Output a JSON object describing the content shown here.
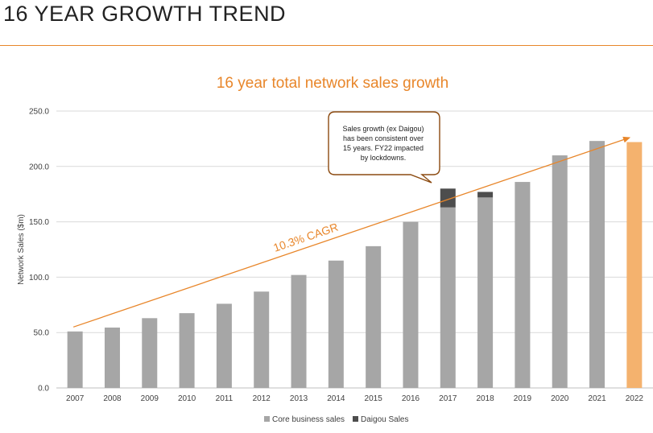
{
  "slide": {
    "title": "16 YEAR GROWTH TREND"
  },
  "colors": {
    "accent": "#E8862A",
    "core": "#A6A6A6",
    "daigou": "#4D4D4D",
    "forecast": "#F4B26E",
    "callout_border": "#8B4A10"
  },
  "chart_data": {
    "type": "bar",
    "title": "16 year total network sales growth",
    "xlabel": "",
    "ylabel": "Network Sales ($m)",
    "ylim": [
      0,
      250
    ],
    "yticks": [
      "0.0",
      "50.0",
      "100.0",
      "150.0",
      "200.0",
      "250.0"
    ],
    "grid": true,
    "stacked": true,
    "categories": [
      "2007",
      "2008",
      "2009",
      "2010",
      "2011",
      "2012",
      "2013",
      "2014",
      "2015",
      "2016",
      "2017",
      "2018",
      "2019",
      "2020",
      "2021",
      "2022"
    ],
    "series": [
      {
        "name": "Core business sales",
        "values": [
          51,
          54.5,
          63,
          67.5,
          76,
          87,
          102,
          115,
          128,
          150,
          163,
          172,
          186,
          210,
          223,
          222
        ]
      },
      {
        "name": "Daigou Sales",
        "values": [
          0,
          0,
          0,
          0,
          0,
          0,
          0,
          0,
          0,
          0,
          17,
          5,
          0,
          0,
          0,
          0
        ]
      }
    ],
    "highlight_category": "2022",
    "legend_position": "bottom",
    "annotations": {
      "cagr_label": "10.3% CAGR",
      "trend_start": {
        "x": "2007",
        "y": 55
      },
      "trend_end": {
        "x": "2022",
        "y": 226
      },
      "callout_lines": [
        "Sales growth (ex Daigou)",
        "has been consistent over",
        "15 years.  FY22 impacted",
        "by lockdowns."
      ]
    }
  }
}
